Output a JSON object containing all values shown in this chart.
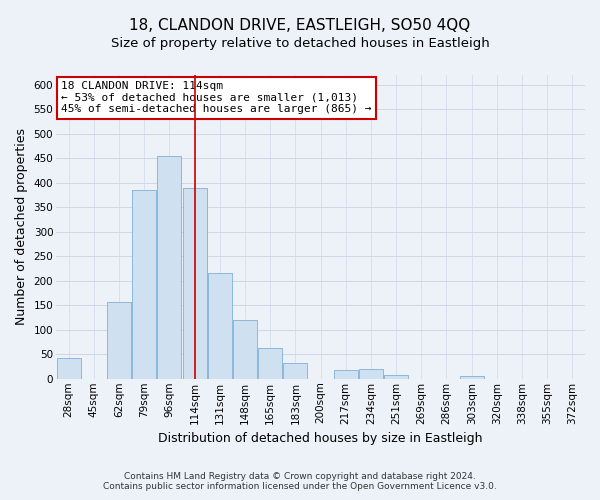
{
  "title": "18, CLANDON DRIVE, EASTLEIGH, SO50 4QQ",
  "subtitle": "Size of property relative to detached houses in Eastleigh",
  "xlabel": "Distribution of detached houses by size in Eastleigh",
  "ylabel": "Number of detached properties",
  "bar_values": [
    42,
    0,
    157,
    385,
    455,
    390,
    215,
    120,
    62,
    33,
    0,
    17,
    20,
    8,
    0,
    0,
    5,
    0,
    0,
    0,
    0
  ],
  "bin_labels": [
    "28sqm",
    "45sqm",
    "62sqm",
    "79sqm",
    "96sqm",
    "114sqm",
    "131sqm",
    "148sqm",
    "165sqm",
    "183sqm",
    "200sqm",
    "217sqm",
    "234sqm",
    "251sqm",
    "269sqm",
    "286sqm",
    "303sqm",
    "320sqm",
    "338sqm",
    "355sqm",
    "372sqm"
  ],
  "bar_color": "#cfe0f0",
  "bar_edge_color": "#7db0d8",
  "vline_x_index": 5,
  "vline_color": "#cc0000",
  "annotation_text": "18 CLANDON DRIVE: 114sqm\n← 53% of detached houses are smaller (1,013)\n45% of semi-detached houses are larger (865) →",
  "annotation_box_facecolor": "#ffffff",
  "annotation_box_edgecolor": "#cc0000",
  "ylim": [
    0,
    620
  ],
  "yticks": [
    0,
    50,
    100,
    150,
    200,
    250,
    300,
    350,
    400,
    450,
    500,
    550,
    600
  ],
  "footnote1": "Contains HM Land Registry data © Crown copyright and database right 2024.",
  "footnote2": "Contains public sector information licensed under the Open Government Licence v3.0.",
  "bg_color": "#edf2f9",
  "grid_color": "#d0d8e8",
  "title_fontsize": 11,
  "subtitle_fontsize": 9.5,
  "axis_label_fontsize": 9,
  "tick_fontsize": 7.5,
  "annotation_fontsize": 8,
  "footnote_fontsize": 6.5
}
